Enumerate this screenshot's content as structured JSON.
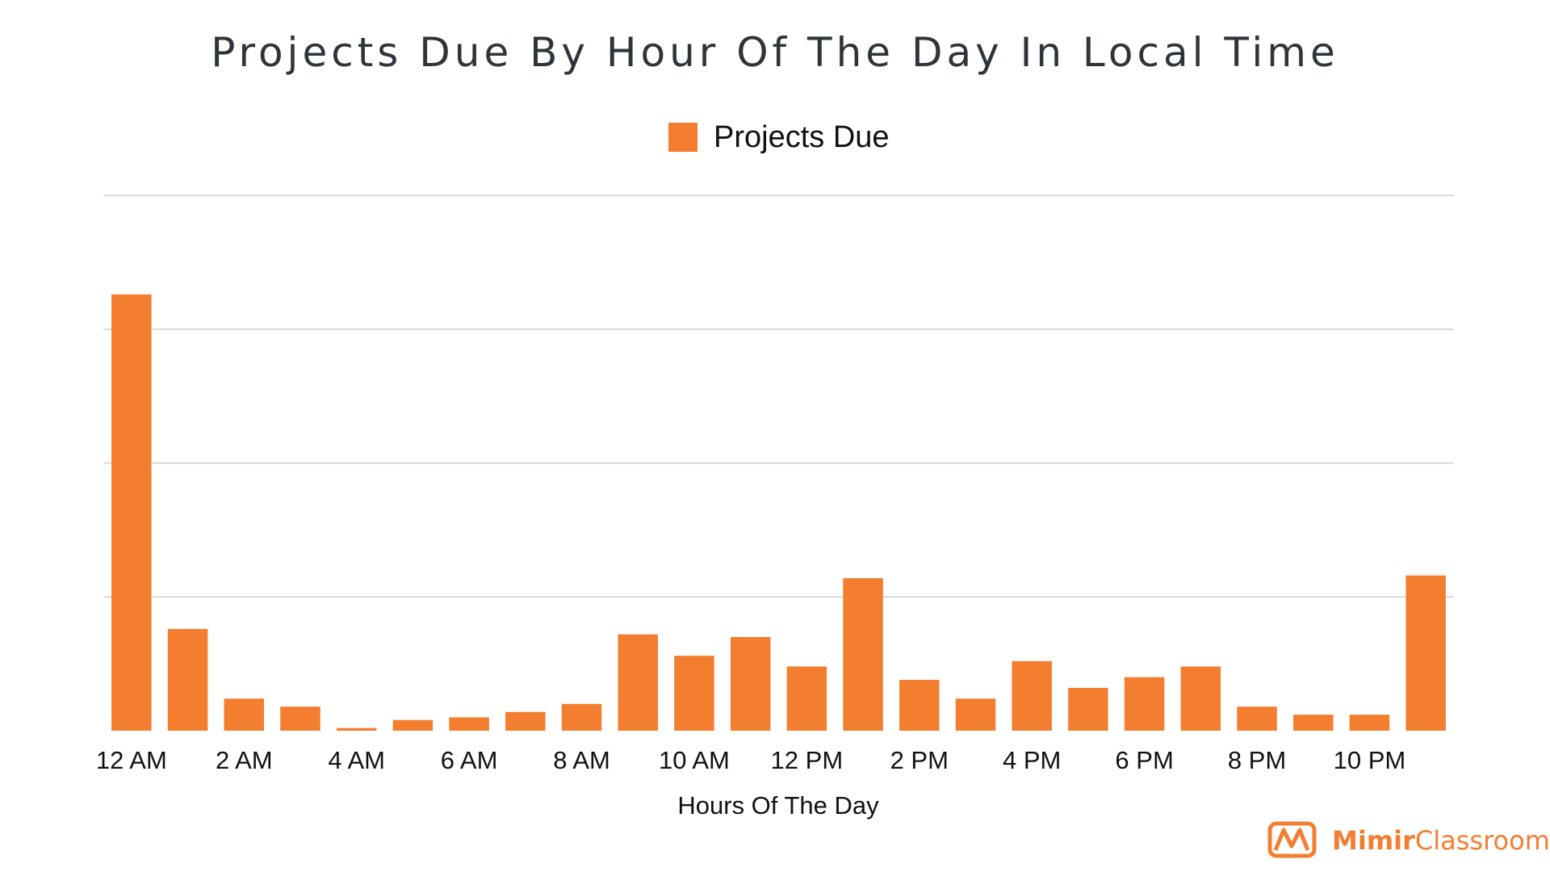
{
  "chart_data": {
    "type": "bar",
    "title": "Projects Due By Hour Of The Day In Local Time",
    "xlabel": "Hours Of The Day",
    "ylabel": "",
    "legend": {
      "position": "top-center",
      "entries": [
        "Projects Due"
      ]
    },
    "grid": true,
    "ylim": [
      0,
      200
    ],
    "color": "#f47e30",
    "categories": [
      "12 AM",
      "1 AM",
      "2 AM",
      "3 AM",
      "4 AM",
      "5 AM",
      "6 AM",
      "7 AM",
      "8 AM",
      "9 AM",
      "10 AM",
      "11 AM",
      "12 PM",
      "1 PM",
      "2 PM",
      "3 PM",
      "4 PM",
      "5 PM",
      "6 PM",
      "7 PM",
      "8 PM",
      "9 PM",
      "10 PM",
      "11 PM"
    ],
    "tick_labels": [
      "12 AM",
      "2 AM",
      "4 AM",
      "6 AM",
      "8 AM",
      "10 AM",
      "12 PM",
      "2 PM",
      "4 PM",
      "6 PM",
      "8 PM",
      "10 PM"
    ],
    "series": [
      {
        "name": "Projects Due",
        "values": [
          163,
          38,
          12,
          9,
          1,
          4,
          5,
          7,
          10,
          36,
          28,
          35,
          24,
          57,
          19,
          12,
          26,
          16,
          20,
          24,
          9,
          6,
          6,
          58
        ]
      }
    ]
  },
  "brand": {
    "bold": "Mimir",
    "light": "Classroom"
  },
  "colors": {
    "bar": "#f47e30",
    "grid": "#cfcfcf",
    "title": "#2f343b"
  }
}
